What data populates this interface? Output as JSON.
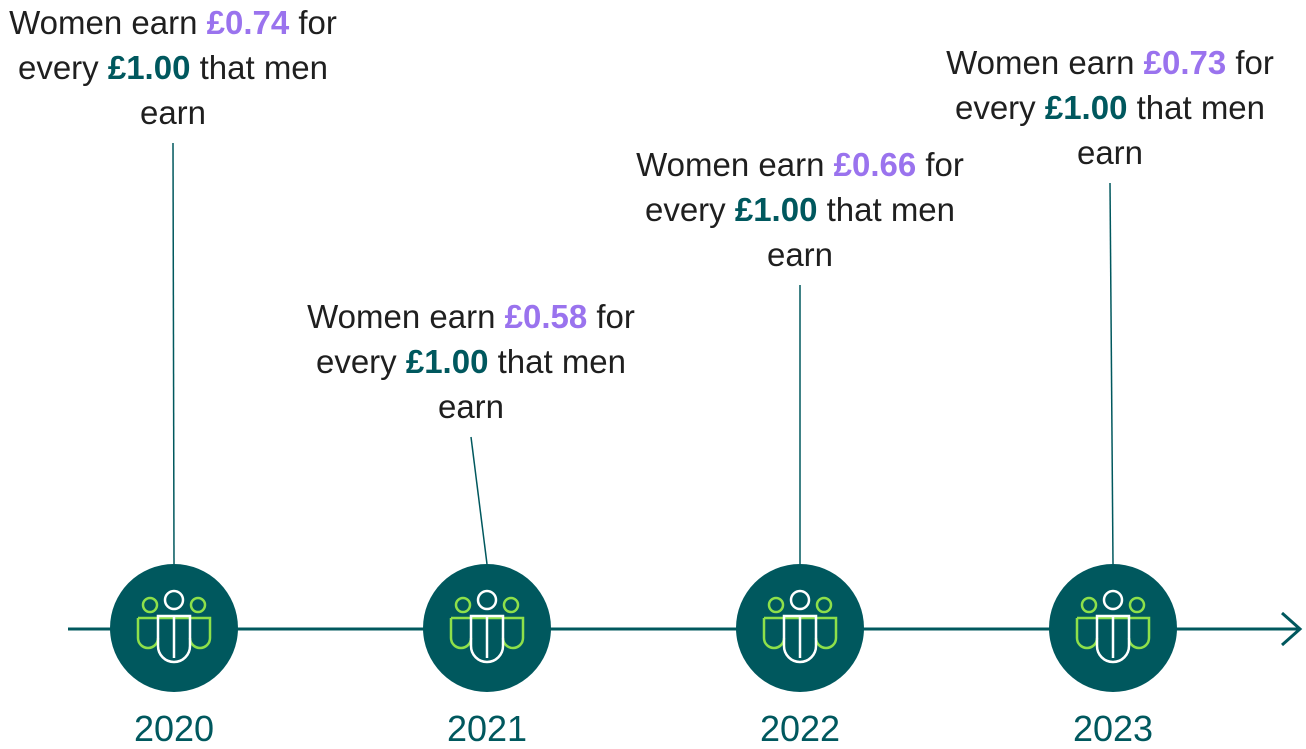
{
  "timeline": {
    "items": [
      {
        "year": "2020",
        "prefix": "Women earn",
        "women": "£0.74",
        "middle": "for every",
        "men": "£1.00",
        "suffix": "that men earn"
      },
      {
        "year": "2021",
        "prefix": "Women earn",
        "women": "£0.58",
        "middle": "for every",
        "men": "£1.00",
        "suffix": "that men earn"
      },
      {
        "year": "2022",
        "prefix": "Women earn",
        "women": "£0.66",
        "middle": "for every",
        "men": "£1.00",
        "suffix": "that men earn"
      },
      {
        "year": "2023",
        "prefix": "Women earn",
        "women": "£0.73",
        "middle": "for every",
        "men": "£1.00",
        "suffix": "that men earn"
      }
    ]
  }
}
